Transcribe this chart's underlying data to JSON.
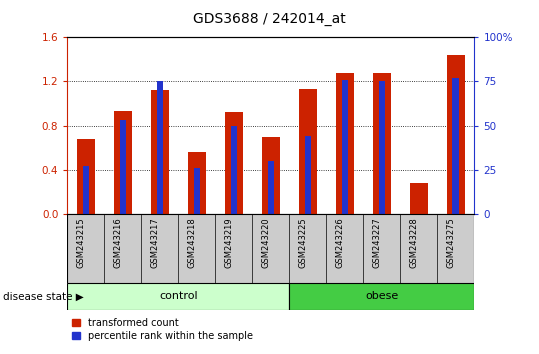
{
  "title": "GDS3688 / 242014_at",
  "samples": [
    "GSM243215",
    "GSM243216",
    "GSM243217",
    "GSM243218",
    "GSM243219",
    "GSM243220",
    "GSM243225",
    "GSM243226",
    "GSM243227",
    "GSM243228",
    "GSM243275"
  ],
  "red_values": [
    0.68,
    0.93,
    1.12,
    0.56,
    0.92,
    0.7,
    1.13,
    1.28,
    1.28,
    0.28,
    1.44
  ],
  "blue_values_pct": [
    27,
    53,
    75,
    26,
    50,
    30,
    44,
    76,
    75,
    0,
    77
  ],
  "ylim_left": [
    0,
    1.6
  ],
  "ylim_right": [
    0,
    100
  ],
  "yticks_left": [
    0,
    0.4,
    0.8,
    1.2,
    1.6
  ],
  "yticks_right": [
    0,
    25,
    50,
    75,
    100
  ],
  "n_control": 6,
  "n_obese": 5,
  "control_label": "control",
  "obese_label": "obese",
  "disease_state_label": "disease state",
  "legend_red": "transformed count",
  "legend_blue": "percentile rank within the sample",
  "bar_color_red": "#cc2200",
  "bar_color_blue": "#2233cc",
  "control_bg": "#ccffcc",
  "obese_bg": "#44cc44",
  "label_area_bg": "#cccccc",
  "bar_width": 0.5,
  "blue_bar_width": 0.18,
  "title_fontsize": 10,
  "tick_fontsize": 7.5,
  "right_axis_color": "#2233cc"
}
